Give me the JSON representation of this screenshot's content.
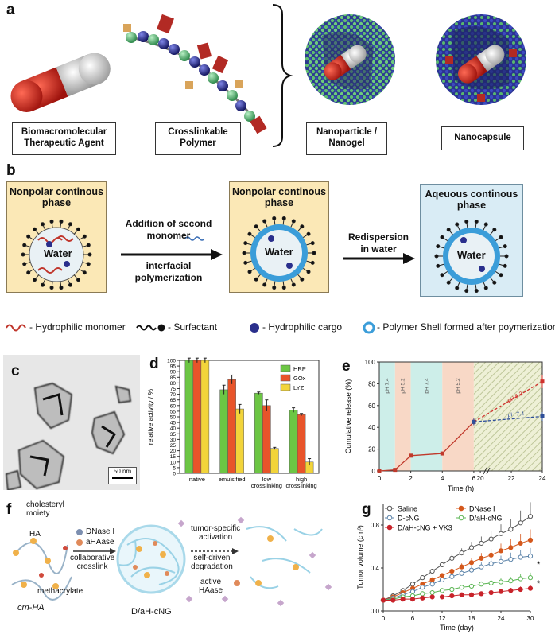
{
  "panel_a": {
    "letter": "a",
    "labels": [
      "Biomacromolecular\nTherapeutic Agent",
      "Crosslinkable\nPolymer",
      "Nanoparticle /\nNanogel",
      "Nanocapsule"
    ],
    "colors": {
      "capsule_red": "#c9231b",
      "capsule_white": "#e3e3e3",
      "bead_green": "#5cb87a",
      "bead_blue": "#2a2f8c",
      "crosslinker": "#b8312a"
    }
  },
  "panel_b": {
    "letter": "b",
    "box1_title": "Nonpolar continous\nphase",
    "box2_title": "Nonpolar continous\nphase",
    "box3_title": "Aqeuous continous\nphase",
    "water_label": "Water",
    "arrow1_top": "Addition of second\nmonomer",
    "arrow1_bottom": "interfacial\npolymerization",
    "arrow2_top": "Redispersion\nin water",
    "legend": [
      "- Hydrophilic monomer",
      "- Surfactant",
      "- Hydrophilic cargo",
      "- Polymer Shell formed after poymerization"
    ]
  },
  "panel_c": {
    "letter": "c",
    "scale_bar": "50 nm"
  },
  "panel_d": {
    "letter": "d",
    "chart_data": {
      "type": "bar",
      "categories": [
        "native",
        "emulsified",
        "low\ncrosslinking",
        "high\ncrosslinking"
      ],
      "series": [
        {
          "name": "HRP",
          "values": [
            100,
            74,
            71,
            56
          ],
          "errors": [
            2,
            4,
            1,
            2
          ],
          "color": "#6cc644"
        },
        {
          "name": "GOx",
          "values": [
            100,
            83,
            60,
            52
          ],
          "errors": [
            2,
            4,
            5,
            1
          ],
          "color": "#e8542a"
        },
        {
          "name": "LYZ",
          "values": [
            100,
            57,
            22,
            10
          ],
          "errors": [
            2,
            4,
            1,
            3
          ],
          "color": "#f2d43a"
        }
      ],
      "ylabel": "relative activity / %",
      "ylim": [
        0,
        100
      ],
      "yticks": [
        0,
        5,
        10,
        15,
        20,
        25,
        30,
        35,
        40,
        45,
        50,
        55,
        60,
        65,
        70,
        75,
        80,
        85,
        90,
        95,
        100
      ],
      "legend": "top-right"
    }
  },
  "panel_e": {
    "letter": "e",
    "chart_data": {
      "type": "line",
      "xlabel": "Time (h)",
      "ylabel": "Cumulative release (%)",
      "ylim": [
        0,
        100
      ],
      "yticks": [
        0,
        20,
        40,
        60,
        80,
        100
      ],
      "xticks": [
        "0",
        "2",
        "4",
        "6",
        "20",
        "22",
        "24"
      ],
      "regions": [
        {
          "label": "pH 7.4",
          "x": [
            0,
            1
          ],
          "color": "#cdeee9"
        },
        {
          "label": "pH 5.2",
          "x": [
            1,
            2
          ],
          "color": "#f8d8c6"
        },
        {
          "label": "pH 7.4",
          "x": [
            2,
            4
          ],
          "color": "#cdeee9"
        },
        {
          "label": "pH 5.2",
          "x": [
            4,
            6
          ],
          "color": "#f8d8c6"
        }
      ],
      "series": [
        {
          "name": "",
          "x": [
            0,
            1,
            2,
            4,
            6
          ],
          "y": [
            0,
            1,
            14,
            16,
            45
          ],
          "color": "#c0392b"
        },
        {
          "name": "pH 5.2",
          "x": [
            6,
            24
          ],
          "y": [
            45,
            82
          ],
          "color": "#d0312d",
          "error": [
            3,
            6
          ]
        },
        {
          "name": "pH 7.4",
          "x": [
            6,
            24
          ],
          "y": [
            45,
            50
          ],
          "color": "#2f4f9a",
          "error": [
            3,
            4
          ]
        }
      ]
    }
  },
  "panel_f": {
    "letter": "f",
    "labels": {
      "cholesteryl": "cholesteryl\nmoiety",
      "ha": "HA",
      "methacrylate": "methacrylate",
      "cmha": "cm-HA",
      "dnase": "DNase I",
      "ahase": "aHAase",
      "collab": "collaborative\ncrosslink",
      "gel": "D/aH-cNG",
      "tumor": "tumor-specific\nactivation",
      "self": "self-driven\ndegradation",
      "active": "active\nHAase"
    }
  },
  "panel_g": {
    "letter": "g",
    "chart_data": {
      "type": "line",
      "xlabel": "Time (day)",
      "ylabel": "Tumor volume (cm³)",
      "ylim": [
        0,
        1.0
      ],
      "yticks": [
        "0.0",
        "0.4",
        "0.8"
      ],
      "xticks": [
        0,
        6,
        12,
        18,
        24,
        30
      ],
      "x": [
        0,
        2,
        4,
        6,
        8,
        10,
        12,
        14,
        16,
        18,
        20,
        22,
        24,
        26,
        28,
        30
      ],
      "series": [
        {
          "name": "Saline",
          "marker": "open",
          "color": "#555555",
          "values": [
            0.1,
            0.14,
            0.19,
            0.25,
            0.31,
            0.37,
            0.43,
            0.49,
            0.54,
            0.59,
            0.63,
            0.67,
            0.72,
            0.76,
            0.82,
            0.88
          ]
        },
        {
          "name": "DNase I",
          "marker": "filled",
          "color": "#d4581c",
          "values": [
            0.1,
            0.13,
            0.17,
            0.21,
            0.25,
            0.29,
            0.33,
            0.37,
            0.41,
            0.45,
            0.49,
            0.52,
            0.56,
            0.59,
            0.63,
            0.66
          ]
        },
        {
          "name": "D-cNG",
          "marker": "open",
          "color": "#5a82a8",
          "values": [
            0.1,
            0.12,
            0.15,
            0.18,
            0.22,
            0.25,
            0.29,
            0.32,
            0.35,
            0.38,
            0.41,
            0.44,
            0.46,
            0.48,
            0.5,
            0.51
          ]
        },
        {
          "name": "D/aH-cNG",
          "marker": "open",
          "color": "#5ab552",
          "values": [
            0.1,
            0.11,
            0.13,
            0.14,
            0.16,
            0.17,
            0.19,
            0.2,
            0.22,
            0.23,
            0.25,
            0.26,
            0.27,
            0.28,
            0.3,
            0.31
          ]
        },
        {
          "name": "D/aH-cNG + VK3",
          "marker": "filled",
          "color": "#c8232a",
          "values": [
            0.1,
            0.1,
            0.11,
            0.11,
            0.12,
            0.13,
            0.13,
            0.14,
            0.15,
            0.15,
            0.16,
            0.17,
            0.18,
            0.19,
            0.2,
            0.21
          ]
        }
      ],
      "legend": "top-left",
      "significance": [
        "*",
        "*"
      ]
    }
  }
}
